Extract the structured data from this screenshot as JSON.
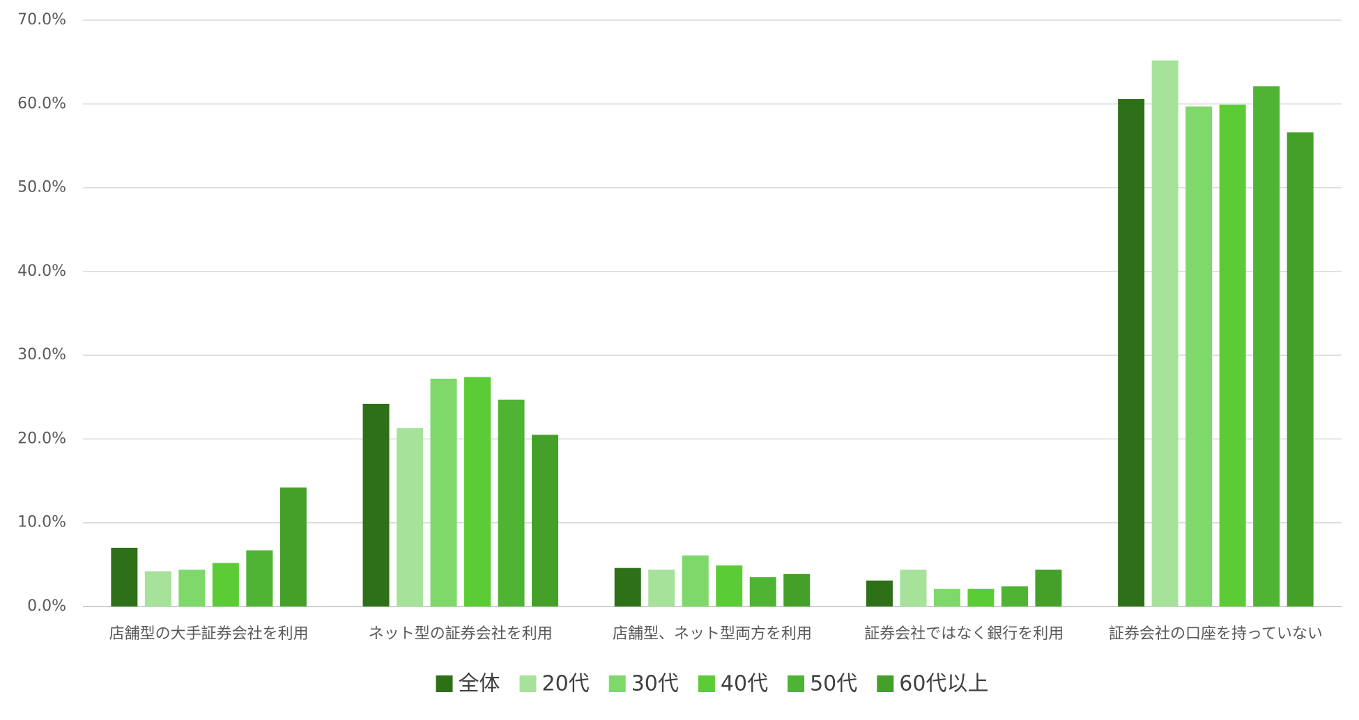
{
  "chart_data": {
    "type": "bar",
    "categories": [
      "店舗型の大手証券会社を利用",
      "ネット型の証券会社を利用",
      "店舗型、ネット型両方を利用",
      "証券会社ではなく銀行を利用",
      "証券会社の口座を持っていない"
    ],
    "series": [
      {
        "name": "全体",
        "color": "#2e7018",
        "values": [
          7.0,
          24.2,
          4.6,
          3.1,
          60.6
        ]
      },
      {
        "name": "20代",
        "color": "#a6e29a",
        "values": [
          4.2,
          21.3,
          4.4,
          4.4,
          65.2
        ]
      },
      {
        "name": "30代",
        "color": "#7ed96a",
        "values": [
          4.4,
          27.2,
          6.1,
          2.1,
          59.7
        ]
      },
      {
        "name": "40代",
        "color": "#5ccc36",
        "values": [
          5.2,
          27.4,
          4.9,
          2.1,
          59.9
        ]
      },
      {
        "name": "50代",
        "color": "#4fb334",
        "values": [
          6.7,
          24.7,
          3.5,
          2.4,
          62.1
        ]
      },
      {
        "name": "60代以上",
        "color": "#45a02a",
        "values": [
          14.2,
          20.5,
          3.9,
          4.4,
          56.6
        ]
      }
    ],
    "ylim": [
      0,
      70
    ],
    "yticks": [
      {
        "value": 0,
        "label": "0.0%"
      },
      {
        "value": 10,
        "label": "10.0%"
      },
      {
        "value": 20,
        "label": "20.0%"
      },
      {
        "value": 30,
        "label": "30.0%"
      },
      {
        "value": 40,
        "label": "40.0%"
      },
      {
        "value": 50,
        "label": "50.0%"
      },
      {
        "value": 60,
        "label": "60.0%"
      },
      {
        "value": 70,
        "label": "70.0%"
      }
    ],
    "grid": true,
    "legend": "bottom"
  }
}
